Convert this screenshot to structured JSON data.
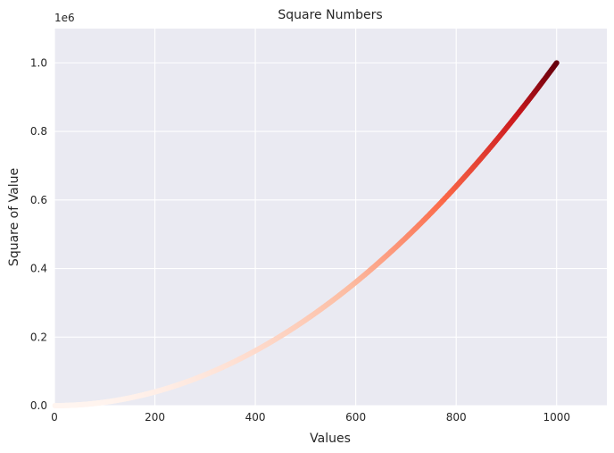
{
  "chart_data": {
    "type": "scatter",
    "title": "Square Numbers",
    "xlabel": "Values",
    "ylabel": "Square of Value",
    "y_offset_label": "1e6",
    "xlim": [
      0,
      1100
    ],
    "ylim": [
      0,
      1100000
    ],
    "x_ticks": [
      0,
      200,
      400,
      600,
      800,
      1000
    ],
    "x_tick_labels": [
      "0",
      "200",
      "400",
      "600",
      "800",
      "1000"
    ],
    "y_ticks": [
      0,
      200000,
      400000,
      600000,
      800000,
      1000000
    ],
    "y_tick_labels": [
      "0.0",
      "0.2",
      "0.4",
      "0.6",
      "0.8",
      "1.0"
    ],
    "series": [
      {
        "x_start": 1,
        "x_end": 1000,
        "formula": "y = x^2",
        "colormap": "Reds"
      }
    ],
    "grid": true,
    "legend": "none",
    "colors": {
      "plot_background": "#eaeaf2",
      "grid": "#ffffff",
      "cmap_low": "#fff5f0",
      "cmap_mid_low": "#fcbba1",
      "cmap_mid": "#fb6a4a",
      "cmap_mid_high": "#cb181d",
      "cmap_high": "#67000d"
    }
  }
}
